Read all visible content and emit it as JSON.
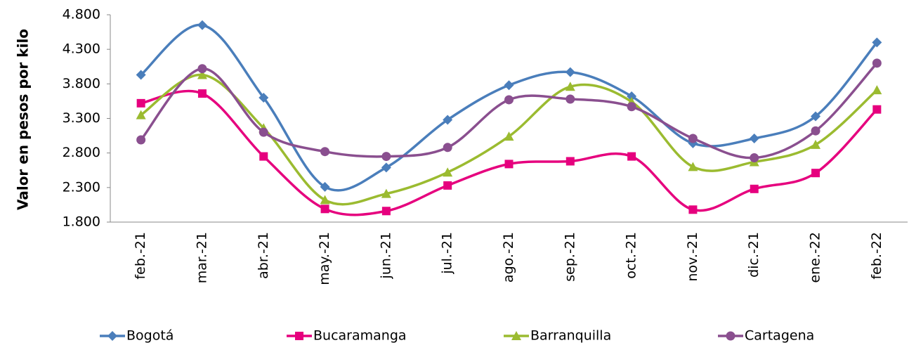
{
  "chart_data": {
    "type": "line",
    "y_label": "Valor en pesos por kilo",
    "categories": [
      "feb.-21",
      "mar.-21",
      "abr.-21",
      "may.-21",
      "jun.-21",
      "jul.-21",
      "ago.-21",
      "sep.-21",
      "oct.-21",
      "nov.-21",
      "dic.-21",
      "ene.-22",
      "feb.-22"
    ],
    "series": [
      {
        "name": "Bogotá",
        "color": "#4a7ebb",
        "marker": "diamond",
        "values": [
          3930,
          4650,
          3600,
          2310,
          2590,
          3280,
          3780,
          3970,
          3620,
          2940,
          3010,
          3330,
          4400
        ]
      },
      {
        "name": "Bucaramanga",
        "color": "#e6007e",
        "marker": "square",
        "values": [
          3520,
          3660,
          2750,
          1990,
          1960,
          2330,
          2640,
          2680,
          2750,
          1980,
          2280,
          2510,
          3430
        ]
      },
      {
        "name": "Barranquilla",
        "color": "#9bbb30",
        "marker": "triangle",
        "values": [
          3350,
          3930,
          3160,
          2120,
          2210,
          2520,
          3040,
          3760,
          3540,
          2600,
          2670,
          2920,
          3710
        ]
      },
      {
        "name": "Cartagena",
        "color": "#8a4f8f",
        "marker": "circle",
        "values": [
          2990,
          4020,
          3100,
          2820,
          2750,
          2880,
          3570,
          3580,
          3470,
          3010,
          2730,
          3120,
          4100
        ]
      }
    ],
    "ylim": [
      1800,
      4800
    ],
    "yticks": [
      {
        "value": 1800,
        "label": "1.800"
      },
      {
        "value": 2300,
        "label": "2.300"
      },
      {
        "value": 2800,
        "label": "2.800"
      },
      {
        "value": 3300,
        "label": "3.300"
      },
      {
        "value": 3800,
        "label": "3.800"
      },
      {
        "value": 4300,
        "label": "4.300"
      },
      {
        "value": 4800,
        "label": "4.800"
      }
    ],
    "grid": false,
    "legend": "bottom"
  }
}
